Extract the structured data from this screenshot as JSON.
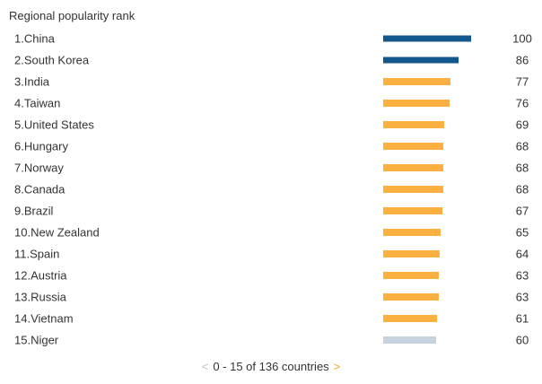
{
  "title": "Regional popularity rank",
  "chart_data": {
    "type": "bar",
    "orientation": "horizontal",
    "title": "Regional popularity rank",
    "xlim": [
      0,
      100
    ],
    "categories": [
      "China",
      "South Korea",
      "India",
      "Taiwan",
      "United States",
      "Hungary",
      "Norway",
      "Canada",
      "Brazil",
      "New Zealand",
      "Spain",
      "Austria",
      "Russia",
      "Vietnam",
      "Niger"
    ],
    "values": [
      100,
      86,
      77,
      76,
      69,
      68,
      68,
      68,
      67,
      65,
      64,
      63,
      63,
      61,
      60
    ],
    "items": [
      {
        "rank": 1,
        "country": "China",
        "value": 100,
        "color": "#12568e"
      },
      {
        "rank": 2,
        "country": "South Korea",
        "value": 86,
        "color": "#12568e"
      },
      {
        "rank": 3,
        "country": "India",
        "value": 77,
        "color": "#fbb042"
      },
      {
        "rank": 4,
        "country": "Taiwan",
        "value": 76,
        "color": "#fbb042"
      },
      {
        "rank": 5,
        "country": "United States",
        "value": 69,
        "color": "#fbb042"
      },
      {
        "rank": 6,
        "country": "Hungary",
        "value": 68,
        "color": "#fbb042"
      },
      {
        "rank": 7,
        "country": "Norway",
        "value": 68,
        "color": "#fbb042"
      },
      {
        "rank": 8,
        "country": "Canada",
        "value": 68,
        "color": "#fbb042"
      },
      {
        "rank": 9,
        "country": "Brazil",
        "value": 67,
        "color": "#fbb042"
      },
      {
        "rank": 10,
        "country": "New Zealand",
        "value": 65,
        "color": "#fbb042"
      },
      {
        "rank": 11,
        "country": "Spain",
        "value": 64,
        "color": "#fbb042"
      },
      {
        "rank": 12,
        "country": "Austria",
        "value": 63,
        "color": "#fbb042"
      },
      {
        "rank": 13,
        "country": "Russia",
        "value": 63,
        "color": "#fbb042"
      },
      {
        "rank": 14,
        "country": "Vietnam",
        "value": 61,
        "color": "#fbb042"
      },
      {
        "rank": 15,
        "country": "Niger",
        "value": 60,
        "color": "#c6d3de"
      }
    ],
    "palette": {
      "top_rank": "#12568e",
      "default": "#fbb042",
      "last": "#c6d3de"
    }
  },
  "pagination": {
    "prev_label": "<",
    "text": "0 - 15 of 136 countries",
    "next_label": ">",
    "prev_color": "#c0c0c0",
    "next_color": "#f7a821"
  }
}
